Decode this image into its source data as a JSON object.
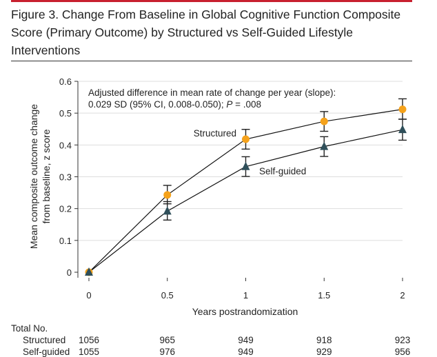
{
  "figure": {
    "title": "Figure 3. Change From Baseline in Global Cognitive Function Composite Score (Primary Outcome) by Structured vs Self-Guided Lifestyle Interventions"
  },
  "chart_data": {
    "type": "line",
    "title": "Figure 3. Change From Baseline in Global Cognitive Function Composite Score (Primary Outcome) by Structured vs Self-Guided Lifestyle Interventions",
    "xlabel": "Years postrandomization",
    "ylabel_line1": "Mean composite outcome change",
    "ylabel_line2": "from baseline, z score",
    "x": [
      0,
      0.5,
      1,
      1.5,
      2
    ],
    "x_tick_labels": [
      "0",
      "0.5",
      "1",
      "1.5",
      "2"
    ],
    "y_tick_labels": [
      "0",
      "0.1",
      "0.2",
      "0.3",
      "0.4",
      "0.5",
      "0.6"
    ],
    "y_ticks": [
      0,
      0.1,
      0.2,
      0.3,
      0.4,
      0.5,
      0.6
    ],
    "xlim": [
      0,
      2
    ],
    "ylim": [
      0,
      0.6
    ],
    "grid": "horizontal",
    "annotation_line1": "Adjusted difference in mean rate of change per year (slope):",
    "annotation_line2_a": "0.029 SD (95% CI, 0.008-0.050); ",
    "annotation_line2_p": "P",
    "annotation_line2_b": " = .008",
    "series": [
      {
        "name": "Structured",
        "color": "#f5a21b",
        "marker": "circle",
        "values": [
          0,
          0.243,
          0.418,
          0.474,
          0.512
        ],
        "ci_low": [
          0,
          0.215,
          0.387,
          0.443,
          0.481
        ],
        "ci_high": [
          0,
          0.273,
          0.449,
          0.505,
          0.545
        ]
      },
      {
        "name": "Self-guided",
        "color": "#2f4f5a",
        "marker": "triangle",
        "values": [
          0,
          0.192,
          0.332,
          0.395,
          0.448
        ],
        "ci_low": [
          0,
          0.164,
          0.301,
          0.364,
          0.415
        ],
        "ci_high": [
          0,
          0.222,
          0.363,
          0.426,
          0.481
        ]
      }
    ]
  },
  "table": {
    "header": "Total No.",
    "rows": [
      {
        "label": "Structured",
        "values": [
          "1056",
          "965",
          "949",
          "918",
          "923"
        ]
      },
      {
        "label": "Self-guided",
        "values": [
          "1055",
          "976",
          "949",
          "929",
          "956"
        ]
      }
    ]
  }
}
